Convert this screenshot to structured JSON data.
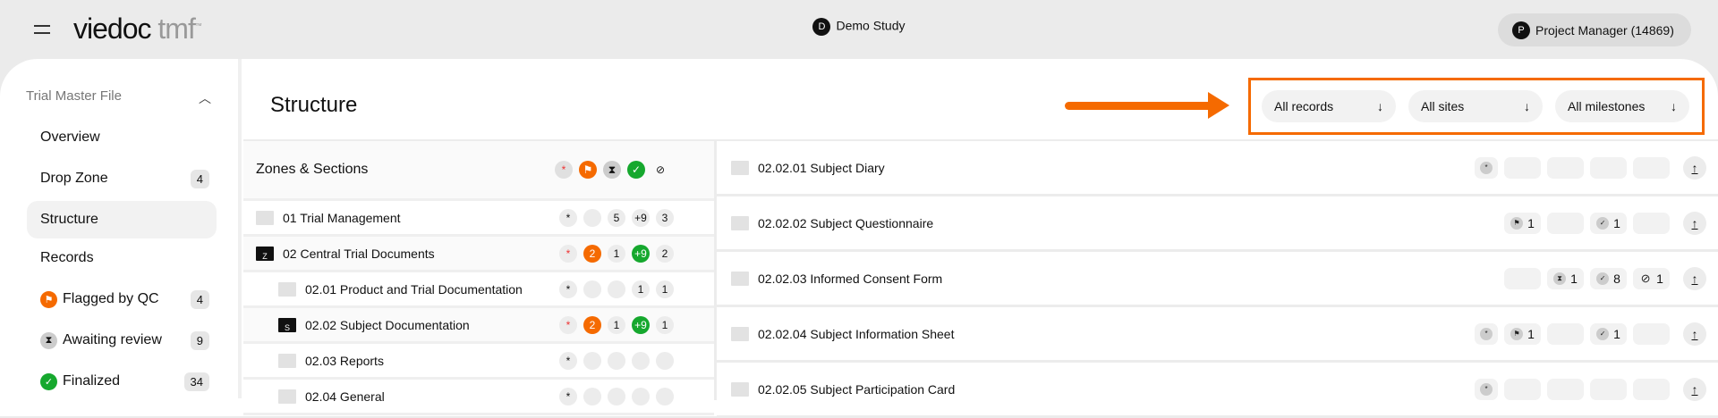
{
  "header": {
    "brand": "viedoc",
    "brand_suffix": "tmf",
    "trademark": "™",
    "study_initial": "D",
    "study": "Demo Study",
    "user_initial": "P",
    "user": "Project Manager (14869)"
  },
  "sidebar": {
    "section": "Trial Master File",
    "items": [
      {
        "label": "Overview",
        "count": null
      },
      {
        "label": "Drop Zone",
        "count": "4"
      },
      {
        "label": "Structure",
        "count": null,
        "active": true
      },
      {
        "label": "Records",
        "count": null
      },
      {
        "label": "Flagged by QC",
        "count": "4",
        "icon": "flag-icon"
      },
      {
        "label": "Awaiting review",
        "count": "9",
        "icon": "hourglass-icon"
      },
      {
        "label": "Finalized",
        "count": "34",
        "icon": "check-icon"
      }
    ]
  },
  "main": {
    "title": "Structure",
    "filters": [
      "All records",
      "All sites",
      "All milestones"
    ]
  },
  "colors": {
    "accent": "#f56a00",
    "finalized": "#16a82e",
    "flag": "#f56a00"
  },
  "zones": {
    "header": "Zones & Sections",
    "rows": [
      {
        "label": "01 Trial Management",
        "folder": "",
        "indent": 0,
        "star": "black",
        "counts": [
          "",
          "5",
          "+9",
          "3"
        ]
      },
      {
        "label": "02 Central Trial Documents",
        "folder": "Z",
        "indent": 0,
        "star": "red",
        "counts": [
          "2",
          "1",
          "+9",
          "2"
        ]
      },
      {
        "label": "02.01 Product and Trial Documentation",
        "folder": "",
        "indent": 1,
        "star": "black",
        "counts": [
          "",
          "",
          "1",
          "1"
        ]
      },
      {
        "label": "02.02 Subject Documentation",
        "folder": "S",
        "indent": 1,
        "star": "red",
        "counts": [
          "2",
          "1",
          "+9",
          "1"
        ]
      },
      {
        "label": "02.03 Reports",
        "folder": "",
        "indent": 1,
        "star": "black",
        "counts": [
          "",
          "",
          "",
          ""
        ]
      },
      {
        "label": "02.04 General",
        "folder": "",
        "indent": 1,
        "star": "black",
        "counts": [
          "",
          "",
          "",
          ""
        ]
      }
    ]
  },
  "sections": [
    {
      "label": "02.02.01 Subject Diary",
      "star": true,
      "flag": "",
      "review": "",
      "final": "",
      "void": ""
    },
    {
      "label": "02.02.02 Subject Questionnaire",
      "star": false,
      "flag": "1",
      "review": "",
      "final": "1",
      "void": ""
    },
    {
      "label": "02.02.03 Informed Consent Form",
      "star": false,
      "flag": "",
      "review": "1",
      "final": "8",
      "void": "1"
    },
    {
      "label": "02.02.04 Subject Information Sheet",
      "star": true,
      "flag": "1",
      "review": "",
      "final": "1",
      "void": ""
    },
    {
      "label": "02.02.05 Subject Participation Card",
      "star": true,
      "flag": "",
      "review": "",
      "final": "",
      "void": ""
    }
  ]
}
